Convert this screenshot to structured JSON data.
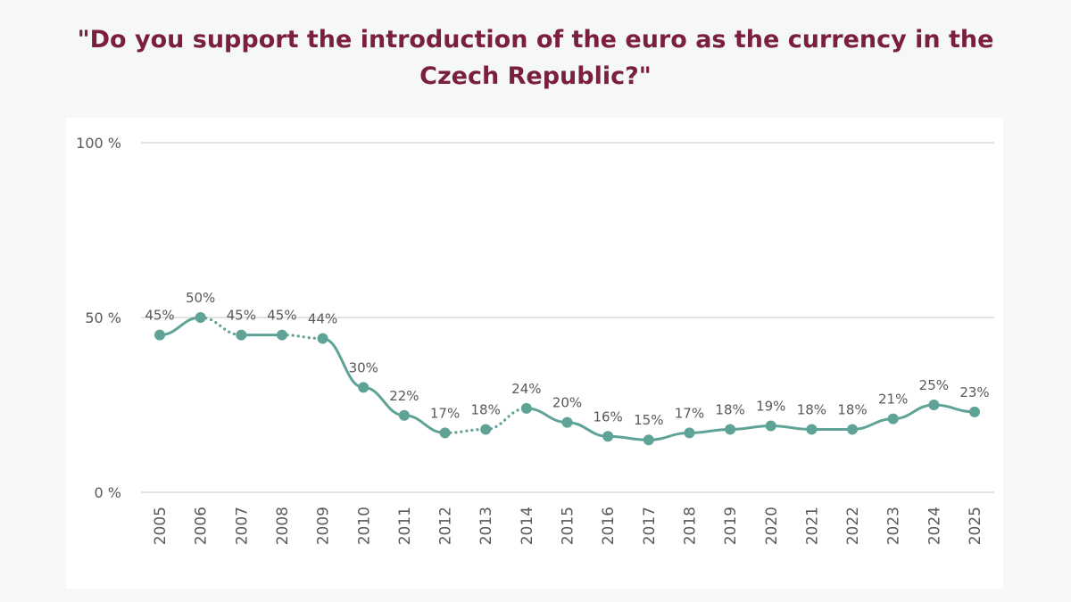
{
  "title": "\"Do you support the introduction of the euro as the currency in the Czech Republic?\"",
  "colors": {
    "title": "#7a1f3d",
    "series": "#5fa397",
    "grid": "#d9d9d9",
    "text": "#595959",
    "background": "#f6f7f9",
    "panel": "#ffffff"
  },
  "chart_data": {
    "type": "line",
    "title": "\"Do you support the introduction of the euro as the currency in the Czech Republic?\"",
    "x": [
      "2005",
      "2006",
      "2007",
      "2008",
      "2009",
      "2010",
      "2011",
      "2012",
      "2013",
      "2014",
      "2015",
      "2016",
      "2017",
      "2018",
      "2019",
      "2020",
      "2021",
      "2022",
      "2023",
      "2024",
      "2025"
    ],
    "series": [
      {
        "values": [
          45,
          50,
          45,
          45,
          44,
          30,
          22,
          17,
          18,
          24,
          20,
          16,
          15,
          17,
          18,
          19,
          18,
          18,
          21,
          25,
          23
        ],
        "data_labels": [
          "45%",
          "50%",
          "45%",
          "45%",
          "44%",
          "30%",
          "22%",
          "17%",
          "18%",
          "24%",
          "20%",
          "16%",
          "15%",
          "17%",
          "18%",
          "19%",
          "18%",
          "18%",
          "21%",
          "25%",
          "23%"
        ]
      }
    ],
    "dotted_segments": [
      [
        "2006",
        "2007"
      ],
      [
        "2008",
        "2009"
      ],
      [
        "2012",
        "2013"
      ],
      [
        "2013",
        "2014"
      ]
    ],
    "ylim": [
      0,
      100
    ],
    "yticks": [
      0,
      50,
      100
    ],
    "ytick_labels": [
      "0 %",
      "50 %",
      "100 %"
    ],
    "grid": true,
    "legend": "none",
    "xlabel": "",
    "ylabel": ""
  }
}
